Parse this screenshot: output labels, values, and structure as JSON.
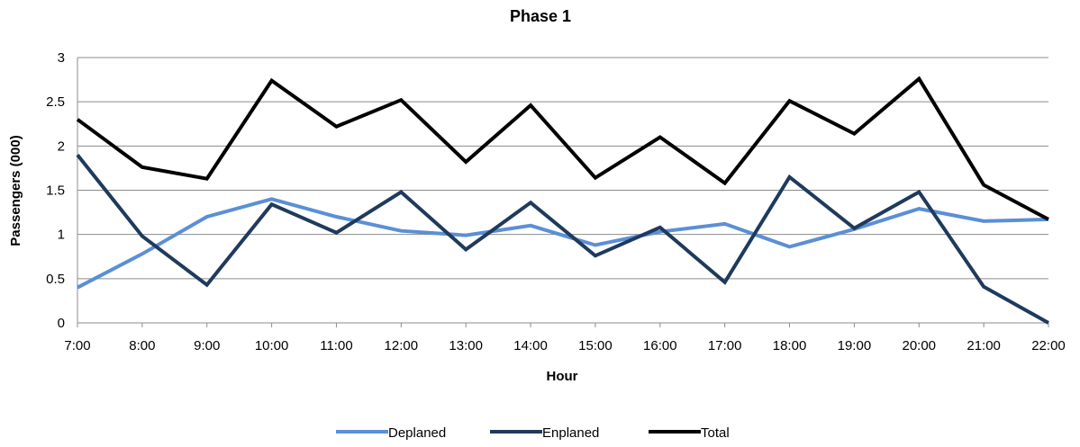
{
  "chart_data": {
    "type": "line",
    "title": "Phase 1",
    "xlabel": "Hour",
    "ylabel": "Passengers (000)",
    "categories": [
      "7:00",
      "8:00",
      "9:00",
      "10:00",
      "11:00",
      "12:00",
      "13:00",
      "14:00",
      "15:00",
      "16:00",
      "17:00",
      "18:00",
      "19:00",
      "20:00",
      "21:00",
      "22:00"
    ],
    "ylim": [
      0,
      3
    ],
    "yticks": [
      "0",
      "0.5",
      "1",
      "1.5",
      "2",
      "2.5",
      "3"
    ],
    "grid": true,
    "legend_position": "bottom",
    "series": [
      {
        "name": "Deplaned",
        "color": "#5b8fd6",
        "values": [
          0.4,
          0.78,
          1.2,
          1.4,
          1.2,
          1.04,
          0.99,
          1.1,
          0.88,
          1.03,
          1.12,
          0.86,
          1.06,
          1.29,
          1.15,
          1.17
        ]
      },
      {
        "name": "Enplaned",
        "color": "#1f3a5c",
        "values": [
          1.9,
          0.98,
          0.43,
          1.34,
          1.02,
          1.48,
          0.83,
          1.36,
          0.76,
          1.08,
          0.46,
          1.65,
          1.07,
          1.48,
          0.41,
          0.0
        ]
      },
      {
        "name": "Total",
        "color": "#000000",
        "values": [
          2.3,
          1.76,
          1.63,
          2.74,
          2.22,
          2.52,
          1.82,
          2.46,
          1.64,
          2.1,
          1.58,
          2.51,
          2.14,
          2.76,
          1.56,
          1.17
        ]
      }
    ]
  }
}
